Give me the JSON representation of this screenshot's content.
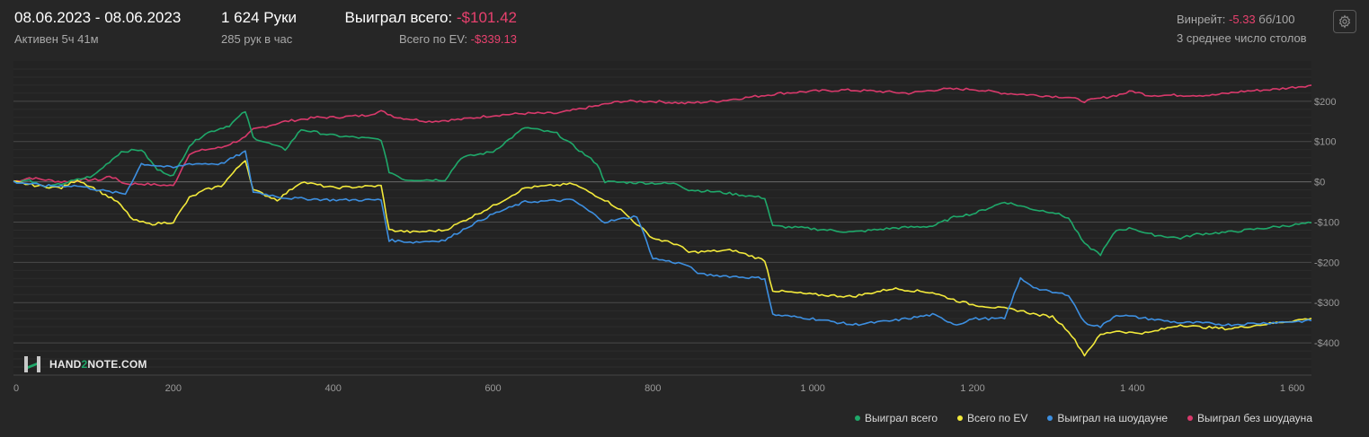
{
  "header": {
    "date_range": "08.06.2023 - 08.06.2023",
    "active": "Активен 5ч 41м",
    "hands": "1 624 Руки",
    "hands_per_hour": "285 рук в час",
    "won_total_label": "Выиграл всего:",
    "won_total_value": "-$101.42",
    "ev_total_label": "Всего по EV:",
    "ev_total_value": "-$339.13",
    "winrate_label": "Винрейт:",
    "winrate_value": "-5.33",
    "winrate_unit": "бб/100",
    "avg_tables": "3 среднее число столов"
  },
  "logo": {
    "text_a": "HAND",
    "text_b": "2",
    "text_c": "NOTE.COM"
  },
  "icons": {
    "settings": "gear-icon",
    "logo": "hand2note-logo-icon"
  },
  "colors": {
    "background": "#262626",
    "negative": "#e8416e",
    "won_total": "#1fa86a",
    "ev_total": "#f2e93b",
    "showdown": "#3d8fe0",
    "non_showdown": "#d8396b"
  },
  "chart_data": {
    "type": "line",
    "xlabel": "",
    "ylabel": "",
    "xlim": [
      0,
      1624
    ],
    "ylim": [
      -480,
      300
    ],
    "x_ticks": [
      0,
      200,
      400,
      600,
      800,
      1000,
      1200,
      1400,
      1600
    ],
    "x_tick_labels": [
      "0",
      "200",
      "400",
      "600",
      "800",
      "1 000",
      "1 200",
      "1 400",
      "1 600"
    ],
    "y_ticks": [
      200,
      100,
      0,
      -100,
      -200,
      -300,
      -400
    ],
    "y_tick_labels": [
      "$200",
      "$100",
      "$0",
      "-$100",
      "-$200",
      "-$300",
      "-$400"
    ],
    "legend_position": "bottom-right",
    "grid": true,
    "series": [
      {
        "name": "Выиграл всего",
        "color": "#1fa86a",
        "points": [
          [
            0,
            0
          ],
          [
            20,
            5
          ],
          [
            40,
            -15
          ],
          [
            80,
            5
          ],
          [
            100,
            15
          ],
          [
            120,
            50
          ],
          [
            135,
            75
          ],
          [
            160,
            80
          ],
          [
            180,
            30
          ],
          [
            200,
            15
          ],
          [
            220,
            90
          ],
          [
            240,
            120
          ],
          [
            270,
            140
          ],
          [
            290,
            175
          ],
          [
            300,
            110
          ],
          [
            320,
            95
          ],
          [
            340,
            80
          ],
          [
            360,
            130
          ],
          [
            400,
            115
          ],
          [
            460,
            105
          ],
          [
            470,
            25
          ],
          [
            490,
            5
          ],
          [
            540,
            5
          ],
          [
            560,
            60
          ],
          [
            600,
            75
          ],
          [
            640,
            135
          ],
          [
            680,
            120
          ],
          [
            700,
            90
          ],
          [
            730,
            45
          ],
          [
            740,
            0
          ],
          [
            830,
            -5
          ],
          [
            845,
            -20
          ],
          [
            880,
            -25
          ],
          [
            940,
            -40
          ],
          [
            950,
            -110
          ],
          [
            990,
            -115
          ],
          [
            1050,
            -125
          ],
          [
            1100,
            -115
          ],
          [
            1150,
            -110
          ],
          [
            1180,
            -85
          ],
          [
            1200,
            -80
          ],
          [
            1240,
            -50
          ],
          [
            1280,
            -70
          ],
          [
            1300,
            -75
          ],
          [
            1320,
            -90
          ],
          [
            1340,
            -155
          ],
          [
            1360,
            -180
          ],
          [
            1380,
            -120
          ],
          [
            1400,
            -115
          ],
          [
            1420,
            -130
          ],
          [
            1460,
            -140
          ],
          [
            1480,
            -130
          ],
          [
            1520,
            -125
          ],
          [
            1624,
            -102
          ]
        ]
      },
      {
        "name": "Всего по EV",
        "color": "#f2e93b",
        "points": [
          [
            0,
            0
          ],
          [
            30,
            -10
          ],
          [
            60,
            -15
          ],
          [
            80,
            5
          ],
          [
            100,
            -15
          ],
          [
            130,
            -50
          ],
          [
            150,
            -95
          ],
          [
            170,
            -105
          ],
          [
            200,
            -100
          ],
          [
            220,
            -40
          ],
          [
            240,
            -20
          ],
          [
            260,
            -10
          ],
          [
            290,
            55
          ],
          [
            300,
            -20
          ],
          [
            330,
            -45
          ],
          [
            360,
            0
          ],
          [
            400,
            -15
          ],
          [
            460,
            -10
          ],
          [
            470,
            -120
          ],
          [
            500,
            -125
          ],
          [
            540,
            -120
          ],
          [
            570,
            -90
          ],
          [
            600,
            -60
          ],
          [
            640,
            -15
          ],
          [
            700,
            -5
          ],
          [
            740,
            -45
          ],
          [
            760,
            -70
          ],
          [
            800,
            -140
          ],
          [
            830,
            -155
          ],
          [
            845,
            -175
          ],
          [
            900,
            -170
          ],
          [
            940,
            -195
          ],
          [
            950,
            -270
          ],
          [
            1000,
            -280
          ],
          [
            1050,
            -285
          ],
          [
            1100,
            -265
          ],
          [
            1150,
            -275
          ],
          [
            1180,
            -295
          ],
          [
            1200,
            -305
          ],
          [
            1240,
            -315
          ],
          [
            1260,
            -320
          ],
          [
            1280,
            -330
          ],
          [
            1300,
            -335
          ],
          [
            1320,
            -370
          ],
          [
            1340,
            -430
          ],
          [
            1360,
            -380
          ],
          [
            1380,
            -370
          ],
          [
            1400,
            -375
          ],
          [
            1420,
            -375
          ],
          [
            1460,
            -355
          ],
          [
            1480,
            -360
          ],
          [
            1520,
            -365
          ],
          [
            1624,
            -339
          ]
        ]
      },
      {
        "name": "Выиграл на шоудауне",
        "color": "#3d8fe0",
        "points": [
          [
            0,
            0
          ],
          [
            40,
            -10
          ],
          [
            80,
            -10
          ],
          [
            120,
            -25
          ],
          [
            140,
            -30
          ],
          [
            160,
            45
          ],
          [
            200,
            35
          ],
          [
            220,
            45
          ],
          [
            260,
            45
          ],
          [
            290,
            75
          ],
          [
            300,
            -25
          ],
          [
            340,
            -40
          ],
          [
            400,
            -45
          ],
          [
            460,
            -45
          ],
          [
            470,
            -145
          ],
          [
            500,
            -150
          ],
          [
            540,
            -145
          ],
          [
            570,
            -110
          ],
          [
            600,
            -80
          ],
          [
            640,
            -50
          ],
          [
            700,
            -45
          ],
          [
            740,
            -100
          ],
          [
            780,
            -85
          ],
          [
            800,
            -190
          ],
          [
            840,
            -205
          ],
          [
            860,
            -230
          ],
          [
            900,
            -235
          ],
          [
            940,
            -240
          ],
          [
            950,
            -330
          ],
          [
            1000,
            -340
          ],
          [
            1050,
            -355
          ],
          [
            1100,
            -345
          ],
          [
            1150,
            -330
          ],
          [
            1180,
            -355
          ],
          [
            1200,
            -340
          ],
          [
            1240,
            -340
          ],
          [
            1260,
            -240
          ],
          [
            1280,
            -265
          ],
          [
            1300,
            -275
          ],
          [
            1320,
            -280
          ],
          [
            1340,
            -350
          ],
          [
            1360,
            -360
          ],
          [
            1380,
            -330
          ],
          [
            1400,
            -335
          ],
          [
            1420,
            -340
          ],
          [
            1460,
            -350
          ],
          [
            1480,
            -350
          ],
          [
            1520,
            -355
          ],
          [
            1624,
            -345
          ]
        ]
      },
      {
        "name": "Выиграл без шоудауна",
        "color": "#d8396b",
        "points": [
          [
            0,
            0
          ],
          [
            20,
            10
          ],
          [
            60,
            0
          ],
          [
            90,
            5
          ],
          [
            110,
            5
          ],
          [
            120,
            15
          ],
          [
            140,
            -5
          ],
          [
            160,
            -5
          ],
          [
            200,
            -10
          ],
          [
            220,
            70
          ],
          [
            240,
            80
          ],
          [
            260,
            85
          ],
          [
            290,
            110
          ],
          [
            300,
            130
          ],
          [
            340,
            150
          ],
          [
            380,
            160
          ],
          [
            400,
            160
          ],
          [
            440,
            165
          ],
          [
            460,
            175
          ],
          [
            480,
            160
          ],
          [
            520,
            150
          ],
          [
            560,
            155
          ],
          [
            600,
            165
          ],
          [
            640,
            170
          ],
          [
            680,
            170
          ],
          [
            720,
            185
          ],
          [
            760,
            200
          ],
          [
            800,
            200
          ],
          [
            840,
            195
          ],
          [
            880,
            200
          ],
          [
            920,
            210
          ],
          [
            960,
            220
          ],
          [
            1000,
            225
          ],
          [
            1040,
            228
          ],
          [
            1080,
            225
          ],
          [
            1120,
            220
          ],
          [
            1160,
            230
          ],
          [
            1200,
            230
          ],
          [
            1240,
            220
          ],
          [
            1280,
            215
          ],
          [
            1320,
            210
          ],
          [
            1340,
            200
          ],
          [
            1380,
            215
          ],
          [
            1400,
            225
          ],
          [
            1420,
            215
          ],
          [
            1460,
            215
          ],
          [
            1500,
            215
          ],
          [
            1540,
            225
          ],
          [
            1580,
            230
          ],
          [
            1624,
            240
          ]
        ]
      }
    ]
  }
}
